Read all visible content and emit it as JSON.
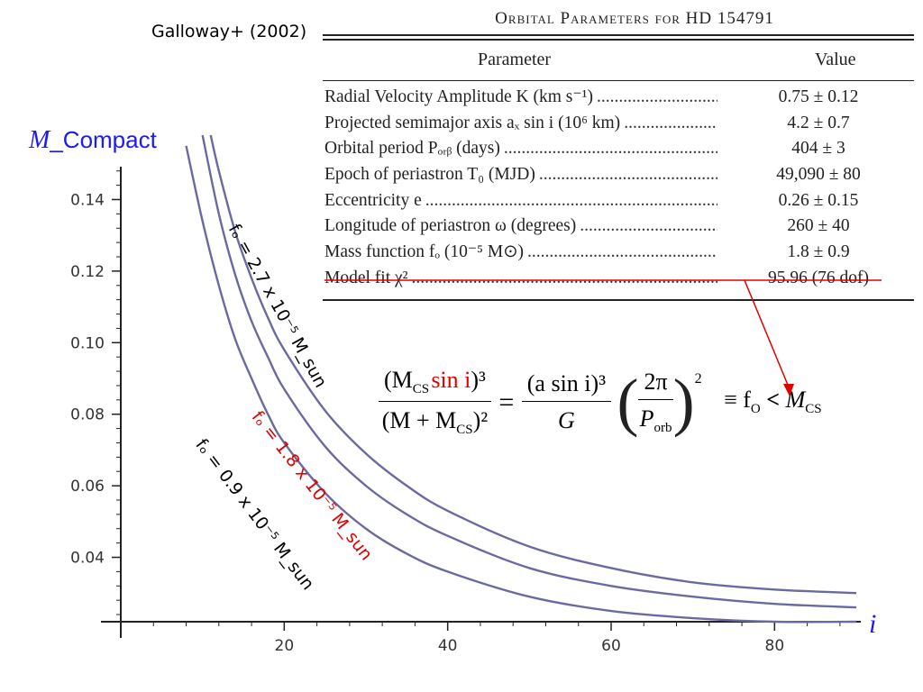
{
  "citation": "Galloway+ (2002)",
  "table": {
    "title": "Orbital Parameters for HD 154791",
    "col_parameter": "Parameter",
    "col_value": "Value",
    "rows": [
      {
        "param": "Radial Velocity Amplitude K (km s⁻¹)",
        "value": "0.75 ± 0.12"
      },
      {
        "param": "Projected semimajor axis aₓ sin i (10⁶ km)",
        "value": "4.2 ± 0.7"
      },
      {
        "param": "Orbital period Pₒᵣᵦ (days)",
        "value": "404 ± 3"
      },
      {
        "param": "Epoch of periastron T₀ (MJD)",
        "value": "49,090 ± 80"
      },
      {
        "param": "Eccentricity e",
        "value": "0.26 ± 0.15"
      },
      {
        "param": "Longitude of periastron ω (degrees)",
        "value": "260 ± 40"
      },
      {
        "param": "Mass function fₒ (10⁻⁵ M⊙)",
        "value": "1.8 ± 0.9"
      },
      {
        "param": "Model fit χ²",
        "value": "95.96 (76 dof)"
      }
    ]
  },
  "equation": {
    "lhs_num_prefix": "(M",
    "lhs_num_sub": "CS",
    "lhs_num_red": "sin i",
    "lhs_num_suffix": ")³",
    "lhs_den": "(M + M",
    "lhs_den_sub": "CS",
    "lhs_den_suffix": ")²",
    "equals": "=",
    "mid_num": "(a sin i)³",
    "mid_den": "G",
    "rhs_num": "2π",
    "rhs_den": "P",
    "rhs_den_sub": "orb",
    "power": "2",
    "result": "≡ f",
    "result_sub": "O",
    "lt": "<",
    "mcs": "M",
    "mcs_sub": "CS"
  },
  "axis_titles": {
    "y_prefix": "M",
    "y_suffix": "_Compact",
    "x": "i"
  },
  "annotations": {
    "top": "fₒ = 2.7 x 10⁻⁵ M_sun",
    "mid": "fₒ = 1.8 x 10⁻⁵ M_sun",
    "bottom": "fₒ = 0.9 x 10⁻⁵ M_sun"
  },
  "colors": {
    "curve": "#6a6aa0",
    "highlight": "#e00000",
    "axis_title": "#1a1aff"
  },
  "chart_data": {
    "type": "line",
    "xlim": [
      0,
      90
    ],
    "ylim": [
      0.022,
      0.158
    ],
    "x_ticks": [
      20,
      40,
      60,
      80
    ],
    "y_ticks": [
      0.04,
      0.06,
      0.08,
      0.1,
      0.12,
      0.14
    ],
    "x_tick_labels": [
      "20",
      "40",
      "60",
      "80"
    ],
    "y_tick_labels": [
      "0.04",
      "0.06",
      "0.08",
      "0.10",
      "0.12",
      "0.14"
    ],
    "grid": false,
    "series": [
      {
        "name": "fₒ = 2.7 x 10⁻⁵ M_sun",
        "x": [
          11,
          12,
          14,
          16,
          18,
          20,
          25,
          30,
          35,
          40,
          50,
          60,
          70,
          80,
          90
        ],
        "y": [
          0.158,
          0.148,
          0.131,
          0.118,
          0.107,
          0.098,
          0.081,
          0.069,
          0.06,
          0.053,
          0.043,
          0.037,
          0.033,
          0.031,
          0.03
        ]
      },
      {
        "name": "fₒ = 1.8 x 10⁻⁵ M_sun",
        "x": [
          10,
          12,
          14,
          16,
          18,
          20,
          25,
          30,
          35,
          40,
          50,
          60,
          70,
          80,
          90
        ],
        "y": [
          0.158,
          0.136,
          0.119,
          0.106,
          0.096,
          0.087,
          0.071,
          0.06,
          0.052,
          0.046,
          0.037,
          0.032,
          0.029,
          0.027,
          0.026
        ]
      },
      {
        "name": "fₒ = 0.9 x 10⁻⁵ M_sun",
        "x": [
          8,
          10,
          12,
          14,
          16,
          18,
          20,
          25,
          30,
          35,
          40,
          50,
          60,
          70,
          80,
          90
        ],
        "y": [
          0.155,
          0.134,
          0.116,
          0.101,
          0.09,
          0.08,
          0.072,
          0.058,
          0.048,
          0.041,
          0.036,
          0.029,
          0.025,
          0.023,
          0.022,
          0.022
        ]
      }
    ]
  }
}
